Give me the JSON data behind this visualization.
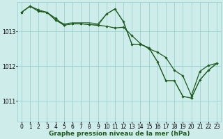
{
  "background_color": "#ceecea",
  "grid_color": "#8ecfcc",
  "line_color": "#1e5c1e",
  "marker_color": "#1e5c1e",
  "xlabel": "Graphe pression niveau de la mer (hPa)",
  "xlabel_fontsize": 6.5,
  "tick_fontsize": 5.5,
  "ylim": [
    1010.4,
    1013.85
  ],
  "xlim": [
    -0.5,
    23.5
  ],
  "yticks": [
    1011,
    1012,
    1013
  ],
  "xticks": [
    0,
    1,
    2,
    3,
    4,
    5,
    6,
    7,
    8,
    9,
    10,
    11,
    12,
    13,
    14,
    15,
    16,
    17,
    18,
    19,
    20,
    21,
    22,
    23
  ],
  "series": [
    {
      "y": [
        1013.55,
        1013.73,
        1013.62,
        1013.55,
        1013.38,
        1013.18,
        1013.22,
        1013.22,
        1013.2,
        1013.18,
        1013.15,
        1013.1,
        1013.12,
        1012.88,
        1012.65,
        1012.5,
        1012.4,
        1012.25,
        1011.88,
        1011.72,
        1011.15,
        1011.85,
        1012.02,
        1012.08
      ],
      "marker": true,
      "linewidth": 0.9
    },
    {
      "y": [
        1013.55,
        1013.73,
        1013.58,
        1013.55,
        1013.33,
        1013.18,
        1013.22,
        1013.22,
        1013.2,
        1013.18,
        1013.5,
        1013.65,
        1013.28,
        1012.63,
        1012.63,
        1012.53,
        1012.13,
        1011.58,
        1011.58,
        1011.13,
        1011.08,
        1011.6,
        1011.88,
        1012.08
      ],
      "marker": true,
      "linewidth": 0.9
    },
    {
      "y": [
        1013.55,
        1013.73,
        1013.58,
        1013.55,
        1013.33,
        1013.22,
        1013.25,
        1013.25,
        1013.25,
        1013.22,
        1013.5,
        1013.65,
        1013.28,
        1012.63,
        1012.63,
        1012.53,
        1012.13,
        1011.58,
        1011.58,
        1011.13,
        1011.08,
        1011.6,
        1011.88,
        1012.08
      ],
      "marker": false,
      "linewidth": 0.7
    }
  ]
}
